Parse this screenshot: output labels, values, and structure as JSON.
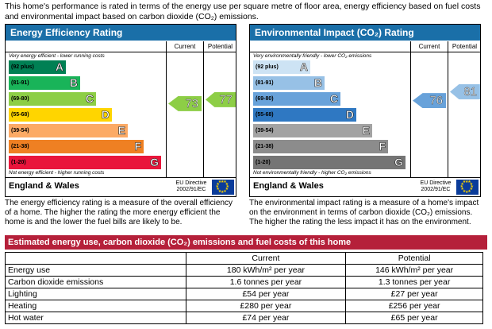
{
  "intro": "This home's performance is rated in terms of the energy use per square metre of floor area, energy efficiency based on fuel costs and environmental impact based on carbon dioxide (CO₂) emissions.",
  "energy": {
    "title": "Energy Efficiency Rating",
    "col_current": "Current",
    "col_potential": "Potential",
    "top_note": "Very energy efficient - lower running costs",
    "bottom_note": "Not energy efficient - higher running costs",
    "bands": [
      {
        "range": "(92 plus)",
        "letter": "A",
        "color": "#008054"
      },
      {
        "range": "(81-91)",
        "letter": "B",
        "color": "#19b459"
      },
      {
        "range": "(69-80)",
        "letter": "C",
        "color": "#8dce46"
      },
      {
        "range": "(55-68)",
        "letter": "D",
        "color": "#ffd500"
      },
      {
        "range": "(39-54)",
        "letter": "E",
        "color": "#fcaa65"
      },
      {
        "range": "(21-38)",
        "letter": "F",
        "color": "#ef8023"
      },
      {
        "range": "(1-20)",
        "letter": "G",
        "color": "#e9153b"
      }
    ],
    "current": "73",
    "potential": "77",
    "current_color": "#8dce46",
    "potential_color": "#8dce46",
    "region": "England & Wales",
    "directive": "EU Directive 2002/91/EC",
    "description": "The energy efficiency rating is a measure of the overall efficiency of a home. The higher the rating the more energy efficient the home is and the lower the fuel bills are likely to be."
  },
  "environment": {
    "title": "Environmental Impact (CO₂) Rating",
    "col_current": "Current",
    "col_potential": "Potential",
    "top_note": "Very environmentally friendly - lower CO₂ emissions",
    "bottom_note": "Not environmentally friendly - higher CO₂ emissions",
    "bands": [
      {
        "range": "(92 plus)",
        "letter": "A",
        "color": "#cde3f4"
      },
      {
        "range": "(81-91)",
        "letter": "B",
        "color": "#97c1e6"
      },
      {
        "range": "(69-80)",
        "letter": "C",
        "color": "#68a2da"
      },
      {
        "range": "(55-68)",
        "letter": "D",
        "color": "#2f78c2"
      },
      {
        "range": "(39-54)",
        "letter": "E",
        "color": "#a3a3a3"
      },
      {
        "range": "(21-38)",
        "letter": "F",
        "color": "#8c8c8c"
      },
      {
        "range": "(1-20)",
        "letter": "G",
        "color": "#757575"
      }
    ],
    "current": "76",
    "potential": "81",
    "current_color": "#68a2da",
    "potential_color": "#97c1e6",
    "region": "England & Wales",
    "directive": "EU Directive 2002/91/EC",
    "description": "The environmental impact rating is a measure of a home's impact on the environment in terms of carbon dioxide (CO₂) emissions. The higher the rating the less impact it has on the environment."
  },
  "costs": {
    "title": "Estimated energy use, carbon dioxide (CO₂) emissions and fuel costs of this home",
    "col_current": "Current",
    "col_potential": "Potential",
    "rows": [
      {
        "label": "Energy use",
        "current": "180 kWh/m² per year",
        "potential": "146 kWh/m² per year"
      },
      {
        "label": "Carbon dioxide emissions",
        "current": "1.6 tonnes per year",
        "potential": "1.3 tonnes per year"
      },
      {
        "label": "Lighting",
        "current": "£54 per year",
        "potential": "£27 per year"
      },
      {
        "label": "Heating",
        "current": "£280 per year",
        "potential": "£256 per year"
      },
      {
        "label": "Hot water",
        "current": "£74 per year",
        "potential": "£65 per year"
      }
    ]
  }
}
